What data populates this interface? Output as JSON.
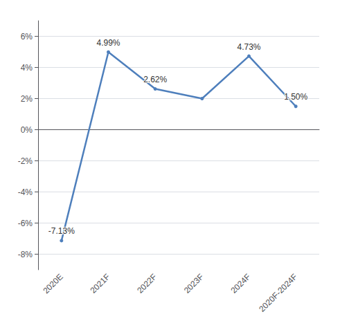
{
  "chart_data": {
    "type": "line",
    "categories": [
      "2020E",
      "2021F",
      "2022F",
      "2023F",
      "2024F",
      "2020F-2024F"
    ],
    "values": [
      -0.0713,
      0.0499,
      0.0262,
      0.02,
      0.0473,
      0.015
    ],
    "value_labels": [
      "-7.13%",
      "4.99%",
      "2.62%",
      null,
      "4.73%",
      "1.50%"
    ],
    "data_labels": true,
    "color": "#4e7fbc",
    "ylim": [
      -0.09,
      0.07
    ],
    "yticks": [
      {
        "value": -0.08,
        "label": "-8%"
      },
      {
        "value": -0.06,
        "label": "-6%"
      },
      {
        "value": -0.04,
        "label": "-4%"
      },
      {
        "value": -0.02,
        "label": "-2%"
      },
      {
        "value": 0.0,
        "label": "0%"
      },
      {
        "value": 0.02,
        "label": "2%"
      },
      {
        "value": 0.04,
        "label": "4%"
      },
      {
        "value": 0.06,
        "label": "6%"
      }
    ],
    "grid": true
  }
}
